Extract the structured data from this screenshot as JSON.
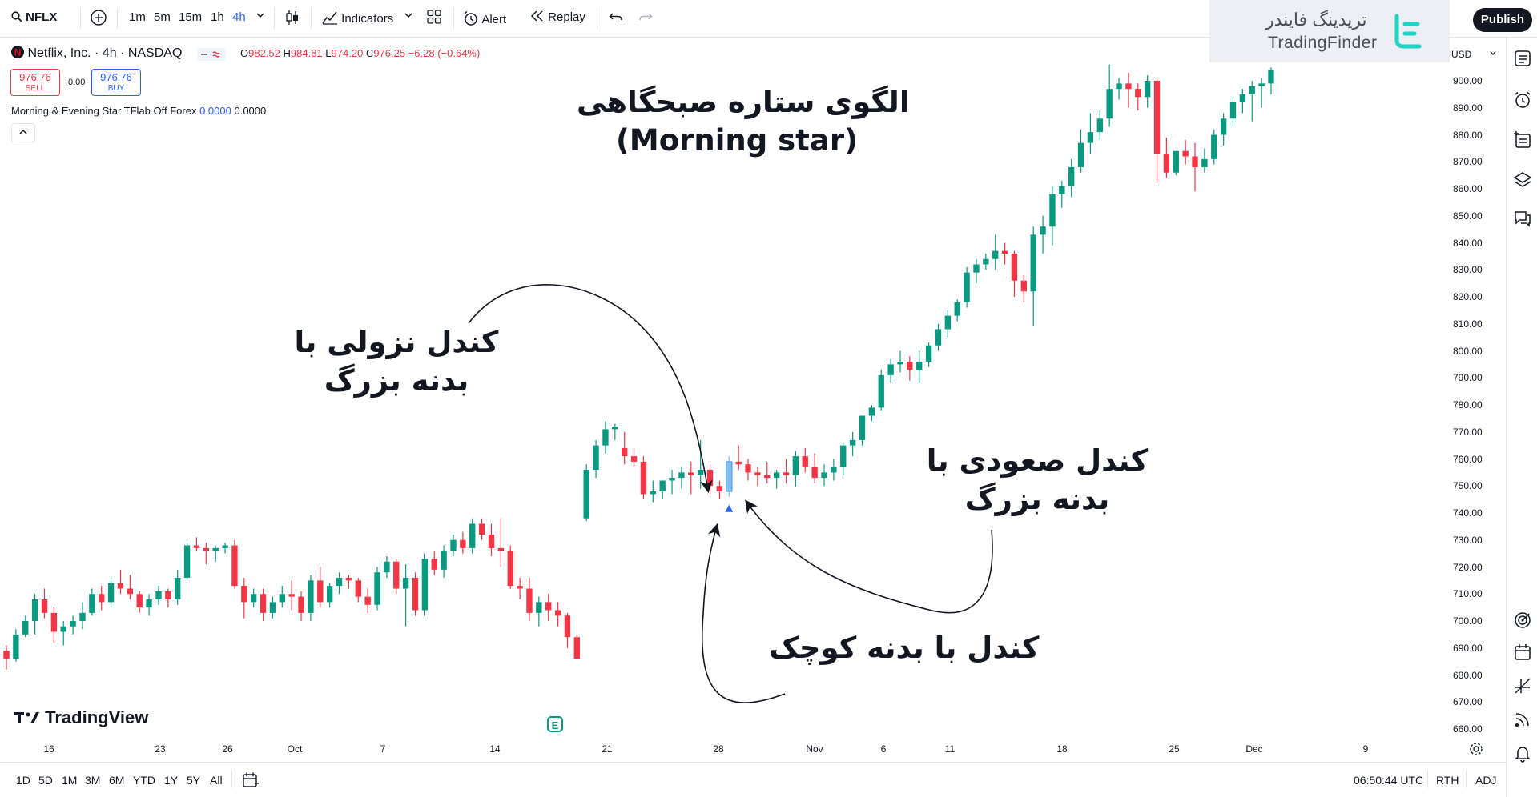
{
  "toolbar": {
    "symbol": "NFLX",
    "intervals": [
      "1m",
      "5m",
      "15m",
      "1h",
      "4h"
    ],
    "selected_interval": "4h",
    "indicators_label": "Indicators",
    "alert_label": "Alert",
    "replay_label": "Replay",
    "publish_label": "Publish"
  },
  "watermark": {
    "brand_fa": "تریدینگ فایندر",
    "brand_en": "TradingFinder"
  },
  "legend": {
    "title": "Netflix, Inc. · 4h · NASDAQ",
    "open_key": "O",
    "open": "982.52",
    "high_key": "H",
    "high": "984.81",
    "low_key": "L",
    "low": "974.20",
    "close_key": "C",
    "close": "976.25",
    "change": "−6.28 (−0.64%)"
  },
  "trade": {
    "sell_price": "976.76",
    "sell_label": "SELL",
    "spread": "0.00",
    "buy_price": "976.76",
    "buy_label": "BUY"
  },
  "indicator": {
    "name": "Morning & Evening Star TFlab Off Forex",
    "value1": "0.0000",
    "value2": "0.0000"
  },
  "annotations": {
    "title_line1": "الگوی ستاره صبحگاهی",
    "title_line2": "(Morning star)",
    "bearish_line1": "کندل نزولی با",
    "bearish_line2": "بدنه بزرگ",
    "bullish_line1": "کندل صعودی با",
    "bullish_line2": "بدنه بزرگ",
    "small_body": "کندل با بدنه کوچک"
  },
  "price_axis": {
    "currency": "USD",
    "labels": [
      "900.00",
      "890.00",
      "880.00",
      "870.00",
      "860.00",
      "850.00",
      "840.00",
      "830.00",
      "820.00",
      "810.00",
      "800.00",
      "790.00",
      "780.00",
      "770.00",
      "760.00",
      "750.00",
      "740.00",
      "730.00",
      "720.00",
      "710.00",
      "700.00",
      "690.00",
      "680.00",
      "670.00",
      "660.00"
    ]
  },
  "time_axis": {
    "labels": [
      "16",
      "23",
      "26",
      "Oct",
      "7",
      "14",
      "21",
      "28",
      "Nov",
      "6",
      "11",
      "18",
      "25",
      "Dec",
      "9"
    ]
  },
  "bottom": {
    "ranges": [
      "1D",
      "5D",
      "1M",
      "3M",
      "6M",
      "YTD",
      "1Y",
      "5Y",
      "All"
    ],
    "time": "06:50:44 UTC",
    "rth": "RTH",
    "adj": "ADJ"
  },
  "brand": {
    "tradingview": "TradingView",
    "earnings_badge": "E"
  },
  "colors": {
    "up": "#089981",
    "down": "#f23645",
    "highlight": "#7fc0f5",
    "accent": "#2962ff"
  },
  "chart_data": {
    "type": "candlestick",
    "symbol": "NFLX",
    "ylim": [
      655,
      908
    ],
    "candles": [
      [
        689,
        691,
        682,
        686
      ],
      [
        686,
        697,
        685,
        695
      ],
      [
        695,
        702,
        694,
        700
      ],
      [
        700,
        710,
        695,
        708
      ],
      [
        708,
        712,
        701,
        703
      ],
      [
        703,
        705,
        692,
        696
      ],
      [
        696,
        700,
        691,
        698
      ],
      [
        698,
        702,
        695,
        700
      ],
      [
        700,
        707,
        697,
        703
      ],
      [
        703,
        712,
        702,
        710
      ],
      [
        710,
        713,
        704,
        707
      ],
      [
        707,
        716,
        705,
        714
      ],
      [
        714,
        719,
        710,
        712
      ],
      [
        712,
        717,
        708,
        710
      ],
      [
        710,
        711,
        703,
        705
      ],
      [
        705,
        710,
        702,
        708
      ],
      [
        708,
        713,
        706,
        711
      ],
      [
        711,
        712,
        705,
        708
      ],
      [
        708,
        719,
        706,
        716
      ],
      [
        716,
        729,
        715,
        728
      ],
      [
        728,
        731,
        726,
        727
      ],
      [
        727,
        729,
        721,
        726
      ],
      [
        726,
        728,
        722,
        727
      ],
      [
        727,
        729,
        725,
        728
      ],
      [
        728,
        730,
        712,
        713
      ],
      [
        713,
        716,
        701,
        707
      ],
      [
        707,
        712,
        705,
        710
      ],
      [
        710,
        712,
        700,
        703
      ],
      [
        703,
        709,
        701,
        707
      ],
      [
        707,
        713,
        705,
        710
      ],
      [
        710,
        715,
        704,
        709
      ],
      [
        709,
        711,
        700,
        703
      ],
      [
        703,
        717,
        700,
        715
      ],
      [
        715,
        720,
        705,
        707
      ],
      [
        707,
        714,
        705,
        713
      ],
      [
        713,
        718,
        710,
        716
      ],
      [
        716,
        717,
        712,
        715
      ],
      [
        715,
        716,
        707,
        709
      ],
      [
        709,
        712,
        703,
        706
      ],
      [
        706,
        720,
        704,
        718
      ],
      [
        718,
        724,
        716,
        722
      ],
      [
        722,
        723,
        710,
        712
      ],
      [
        712,
        721,
        698,
        716
      ],
      [
        716,
        718,
        702,
        704
      ],
      [
        704,
        725,
        702,
        723
      ],
      [
        723,
        726,
        717,
        719
      ],
      [
        719,
        728,
        716,
        726
      ],
      [
        726,
        732,
        724,
        730
      ],
      [
        730,
        733,
        725,
        727
      ],
      [
        727,
        738,
        725,
        736
      ],
      [
        736,
        738,
        730,
        732
      ],
      [
        732,
        736,
        724,
        727
      ],
      [
        727,
        738,
        720,
        726
      ],
      [
        726,
        728,
        712,
        713
      ],
      [
        713,
        716,
        708,
        712
      ],
      [
        712,
        716,
        700,
        703
      ],
      [
        703,
        709,
        698,
        707
      ],
      [
        707,
        710,
        700,
        704
      ],
      [
        704,
        707,
        698,
        702
      ],
      [
        702,
        703,
        690,
        694
      ],
      [
        694,
        695,
        686,
        686
      ],
      [
        738,
        758,
        737,
        756
      ],
      [
        756,
        767,
        753,
        765
      ],
      [
        765,
        774,
        762,
        771
      ],
      [
        771,
        773,
        767,
        772
      ],
      [
        764,
        770,
        758,
        761
      ],
      [
        761,
        764,
        757,
        759
      ],
      [
        759,
        761,
        745,
        747
      ],
      [
        747,
        752,
        744,
        748
      ],
      [
        748,
        752,
        745,
        752
      ],
      [
        752,
        756,
        747,
        753
      ],
      [
        753,
        757,
        749,
        755
      ],
      [
        755,
        759,
        747,
        754
      ],
      [
        754,
        767,
        749,
        756
      ],
      [
        756,
        758,
        747,
        750
      ],
      [
        750,
        752,
        745,
        748
      ],
      [
        748,
        761,
        746,
        759
      ],
      [
        759,
        765,
        756,
        758
      ],
      [
        758,
        760,
        752,
        755
      ],
      [
        755,
        757,
        750,
        754
      ],
      [
        754,
        759,
        751,
        753
      ],
      [
        753,
        756,
        749,
        755
      ],
      [
        755,
        760,
        751,
        754
      ],
      [
        754,
        763,
        750,
        761
      ],
      [
        761,
        764,
        755,
        757
      ],
      [
        757,
        762,
        751,
        753
      ],
      [
        753,
        758,
        750,
        755
      ],
      [
        755,
        760,
        752,
        757
      ],
      [
        757,
        766,
        754,
        765
      ],
      [
        765,
        770,
        761,
        767
      ],
      [
        767,
        775,
        765,
        776
      ],
      [
        776,
        780,
        774,
        779
      ],
      [
        779,
        793,
        778,
        791
      ],
      [
        791,
        797,
        788,
        795
      ],
      [
        795,
        800,
        792,
        796
      ],
      [
        796,
        798,
        789,
        793
      ],
      [
        793,
        800,
        788,
        796
      ],
      [
        796,
        803,
        794,
        802
      ],
      [
        802,
        810,
        800,
        808
      ],
      [
        808,
        815,
        805,
        813
      ],
      [
        813,
        819,
        811,
        818
      ],
      [
        818,
        831,
        816,
        829
      ],
      [
        829,
        834,
        825,
        832
      ],
      [
        832,
        836,
        830,
        834
      ],
      [
        834,
        843,
        830,
        837
      ],
      [
        837,
        840,
        832,
        836
      ],
      [
        836,
        837,
        820,
        826
      ],
      [
        826,
        828,
        818,
        822
      ],
      [
        822,
        846,
        809,
        843
      ],
      [
        843,
        850,
        836,
        846
      ],
      [
        846,
        861,
        839,
        858
      ],
      [
        858,
        863,
        853,
        861
      ],
      [
        861,
        871,
        857,
        868
      ],
      [
        868,
        882,
        866,
        877
      ],
      [
        877,
        888,
        873,
        881
      ],
      [
        881,
        889,
        878,
        886
      ],
      [
        886,
        906,
        883,
        897
      ],
      [
        897,
        901,
        893,
        899
      ],
      [
        899,
        903,
        890,
        897
      ],
      [
        897,
        899,
        889,
        894
      ],
      [
        894,
        902,
        890,
        900
      ],
      [
        900,
        901,
        862,
        873
      ],
      [
        873,
        879,
        864,
        866
      ],
      [
        866,
        874,
        865,
        874
      ],
      [
        874,
        878,
        869,
        872
      ],
      [
        872,
        877,
        859,
        868
      ],
      [
        868,
        875,
        866,
        871
      ],
      [
        871,
        882,
        869,
        880
      ],
      [
        880,
        888,
        876,
        886
      ],
      [
        886,
        894,
        883,
        892
      ],
      [
        892,
        897,
        888,
        895
      ],
      [
        895,
        900,
        885,
        898
      ],
      [
        898,
        901,
        890,
        899
      ],
      [
        899,
        905,
        895,
        904
      ]
    ],
    "highlighted_candle_index": 76,
    "marker": {
      "type": "triangle-up",
      "candle_index": 76
    }
  }
}
